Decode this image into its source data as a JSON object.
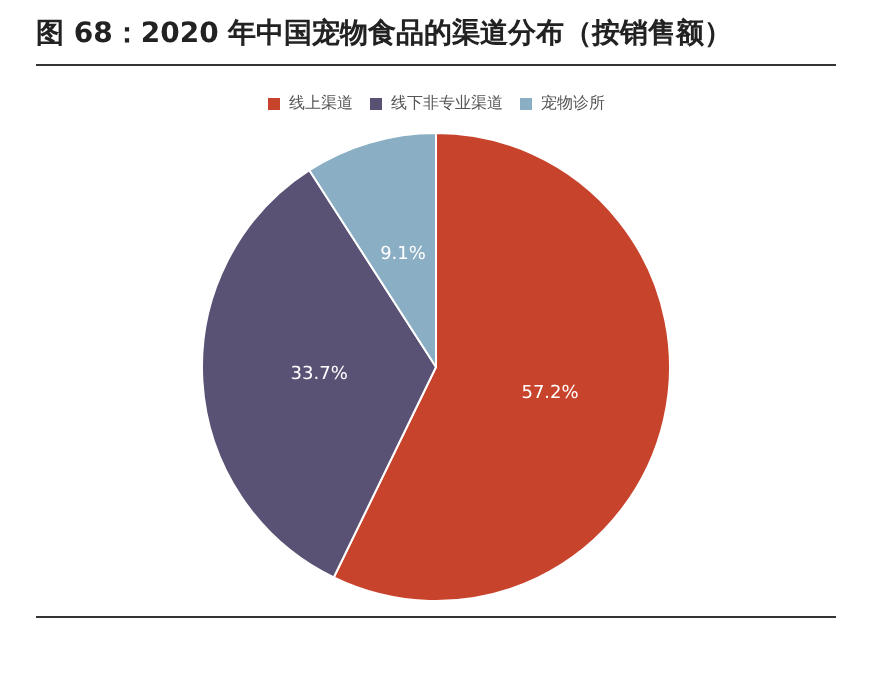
{
  "chart_data": {
    "type": "pie",
    "title": "图 68：2020 年中国宠物食品的渠道分布（按销售额）",
    "categories": [
      "线上渠道",
      "线下非专业渠道",
      "宠物诊所"
    ],
    "values": [
      57.2,
      33.7,
      9.1
    ],
    "colors": [
      "#c8432b",
      "#5a5274",
      "#8aaec4"
    ],
    "value_labels": [
      "57.2%",
      "33.7%",
      "9.1%"
    ],
    "legend": "top"
  }
}
